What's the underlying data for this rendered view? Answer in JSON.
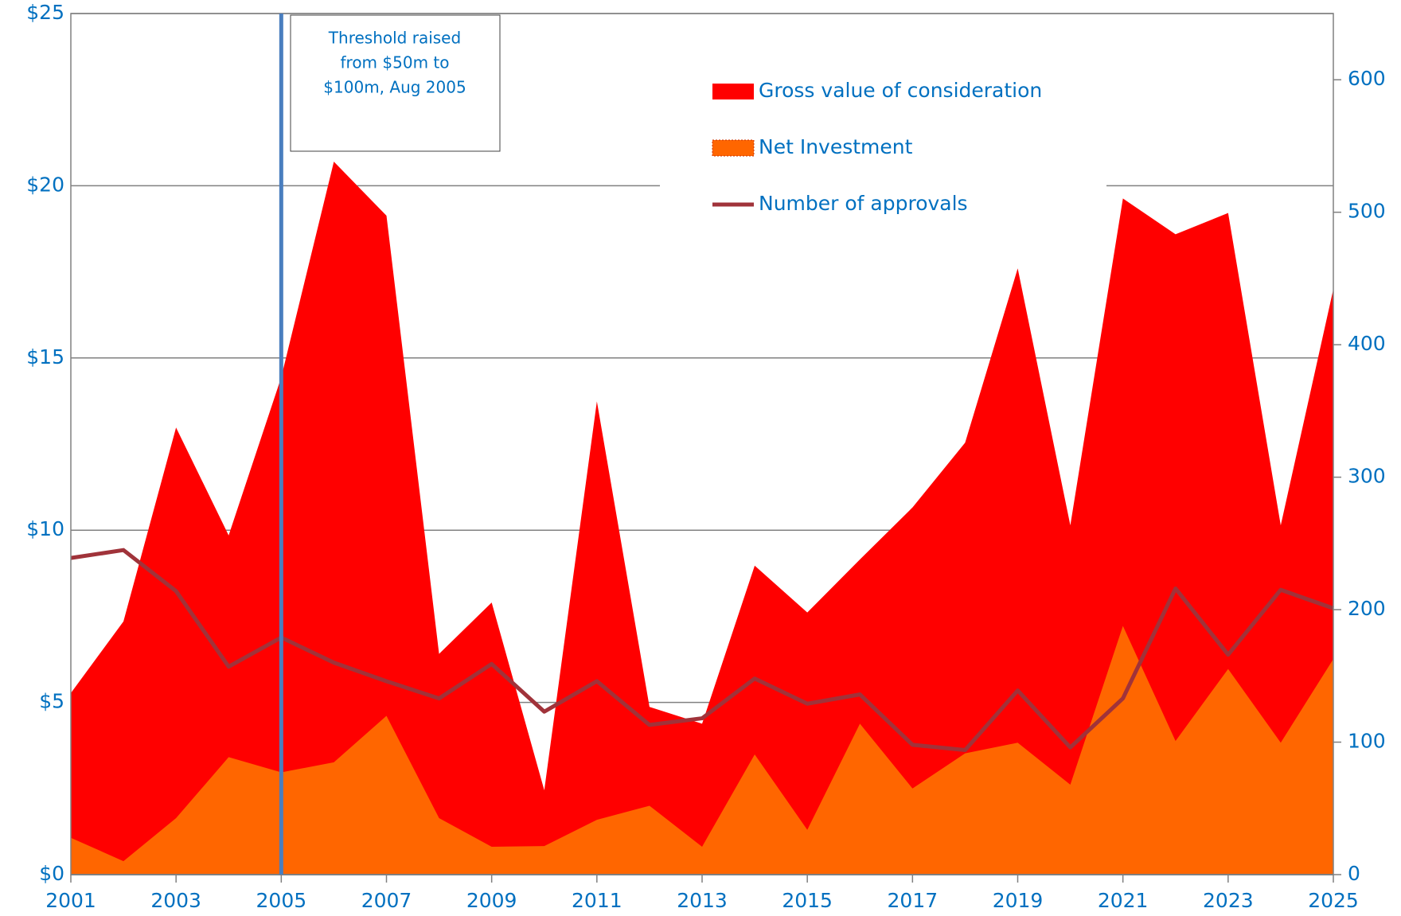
{
  "chart_data": {
    "type": "area",
    "x": [
      2001,
      2002,
      2003,
      2004,
      2005,
      2006,
      2007,
      2008,
      2009,
      2010,
      2011,
      2012,
      2013,
      2014,
      2015,
      2016,
      2017,
      2018,
      2019,
      2020,
      2021,
      2022,
      2023,
      2024,
      2025
    ],
    "series": [
      {
        "name": "Gross value of consideration",
        "type": "area",
        "color": "#ff0000",
        "values": [
          5.27,
          7.35,
          12.98,
          9.85,
          14.44,
          20.7,
          19.13,
          6.41,
          7.9,
          2.45,
          13.74,
          4.87,
          4.38,
          8.97,
          7.61,
          9.15,
          10.66,
          12.54,
          17.6,
          10.14,
          19.63,
          18.59,
          19.21,
          10.14,
          17.0
        ]
      },
      {
        "name": "Net Investment",
        "type": "area",
        "color": "#ff6600",
        "values": [
          1.07,
          0.39,
          1.64,
          3.41,
          2.97,
          3.26,
          4.61,
          1.64,
          0.81,
          0.83,
          1.59,
          2.0,
          0.81,
          3.49,
          1.3,
          4.38,
          2.5,
          3.52,
          3.83,
          2.61,
          7.22,
          3.88,
          5.97,
          3.83,
          6.26
        ]
      },
      {
        "name": "Number of approvals",
        "type": "line",
        "axis": "y2",
        "color": "#a0333a",
        "values": [
          239,
          245,
          214,
          157,
          179,
          160,
          146,
          133,
          159,
          123,
          146,
          113,
          118,
          148,
          129,
          136,
          98,
          94,
          139,
          96,
          133,
          216,
          166,
          215,
          201
        ]
      }
    ],
    "xlim": [
      2001,
      2025
    ],
    "xticks": [
      2001,
      2003,
      2005,
      2007,
      2009,
      2011,
      2013,
      2015,
      2017,
      2019,
      2021,
      2023,
      2025
    ],
    "ylim": [
      0,
      25
    ],
    "yticks": [
      {
        "value": 0,
        "label": "$0"
      },
      {
        "value": 5,
        "label": "$5"
      },
      {
        "value": 10,
        "label": "$10"
      },
      {
        "value": 15,
        "label": "$15"
      },
      {
        "value": 20,
        "label": "$20"
      },
      {
        "value": 25,
        "label": "$25"
      }
    ],
    "y2lim": [
      0,
      650
    ],
    "y2ticks": [
      0,
      100,
      200,
      300,
      400,
      500,
      600
    ],
    "grid": true,
    "threshold_line": {
      "x": 2005,
      "color": "#4a7ebf"
    },
    "annotation": [
      "Threshold raised",
      "from $50m to",
      "$100m, Aug 2005"
    ]
  }
}
